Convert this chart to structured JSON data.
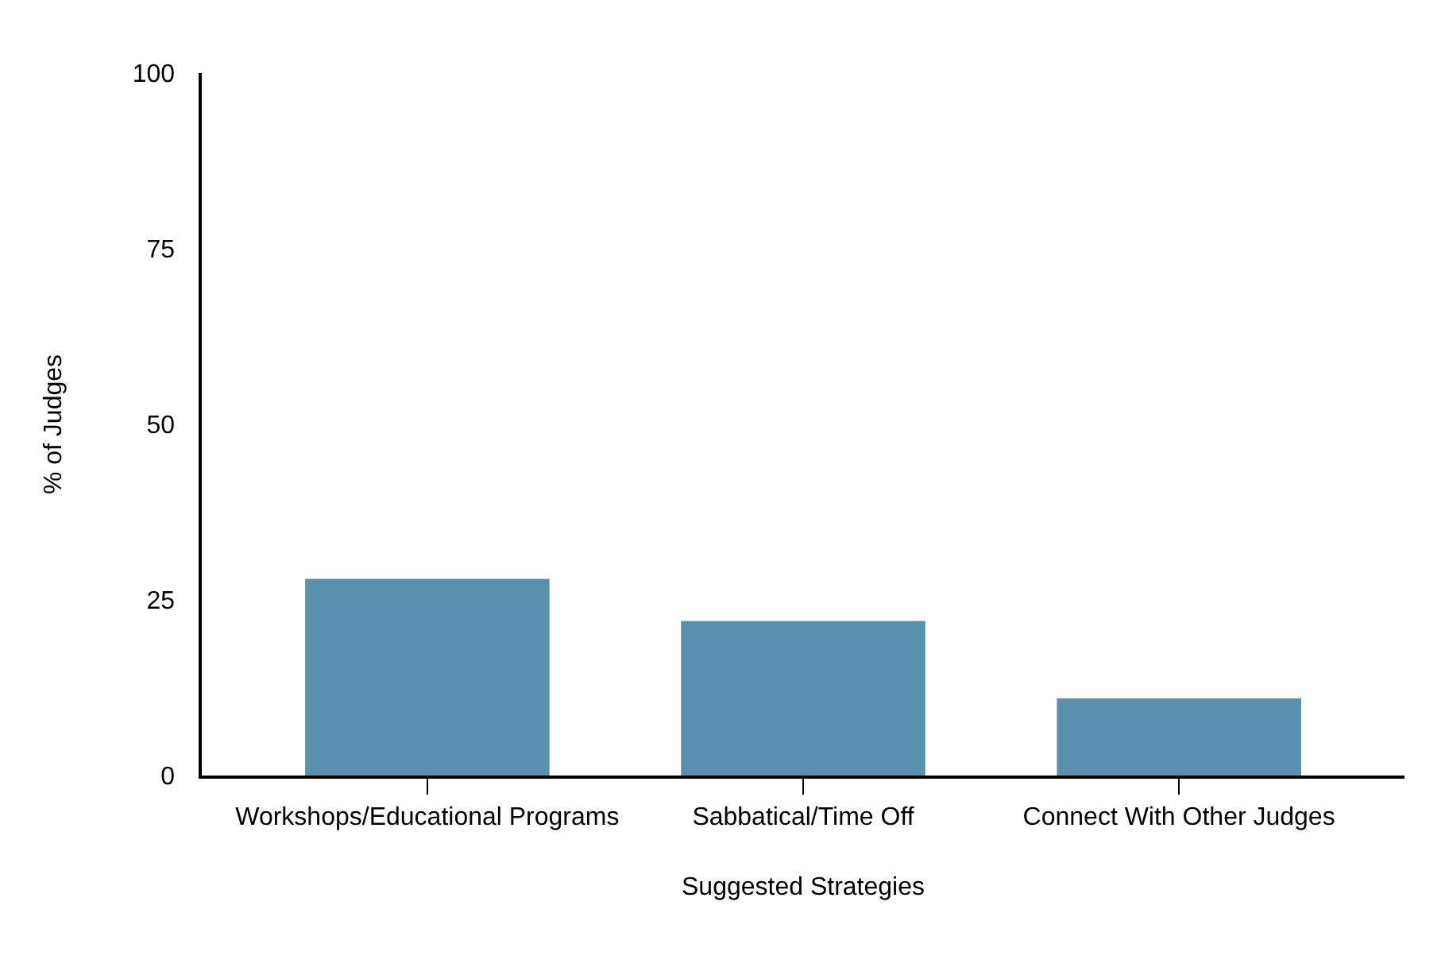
{
  "chart_data": {
    "type": "bar",
    "xlabel": "Suggested Strategies",
    "ylabel": "% of Judges",
    "categories": [
      "Workshops/Educational Programs",
      "Sabbatical/Time Off",
      "Connect With Other Judges"
    ],
    "values": [
      28,
      22,
      11
    ],
    "color": "#5890ae",
    "ylim": [
      0,
      100
    ],
    "yticks": [
      0,
      25,
      50,
      75,
      100
    ]
  }
}
